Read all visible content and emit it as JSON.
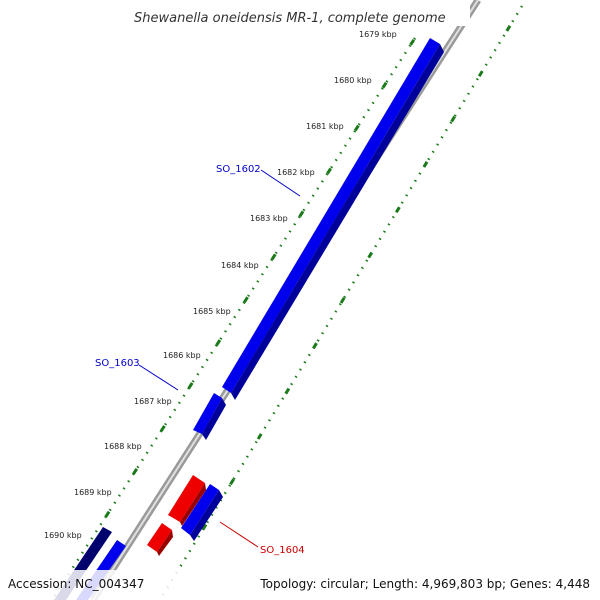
{
  "title": "Shewanella oneidensis MR-1, complete genome",
  "ticks": [
    "1679 kbp",
    "1680 kbp",
    "1681 kbp",
    "1682 kbp",
    "1683 kbp",
    "1684 kbp",
    "1685 kbp",
    "1686 kbp",
    "1687 kbp",
    "1688 kbp",
    "1689 kbp",
    "1690 kbp"
  ],
  "genes": [
    {
      "label": "SO_1602",
      "strand": "forward",
      "color": "#0000ee"
    },
    {
      "label": "SO_1603",
      "strand": "forward",
      "color": "#0000ee"
    },
    {
      "label": "SO_1604",
      "strand": "reverse",
      "color": "#ee0000"
    }
  ],
  "footer": {
    "accession": "Accession: NC_004347",
    "summary": "Topology: circular; Length: 4,969,803 bp; Genes: 4,448"
  },
  "colors": {
    "forward": "#0000ee",
    "reverse": "#ee0000",
    "dark_forward": "#00006e",
    "backbone": "#888888",
    "tick_track": "#1a7a1a"
  }
}
